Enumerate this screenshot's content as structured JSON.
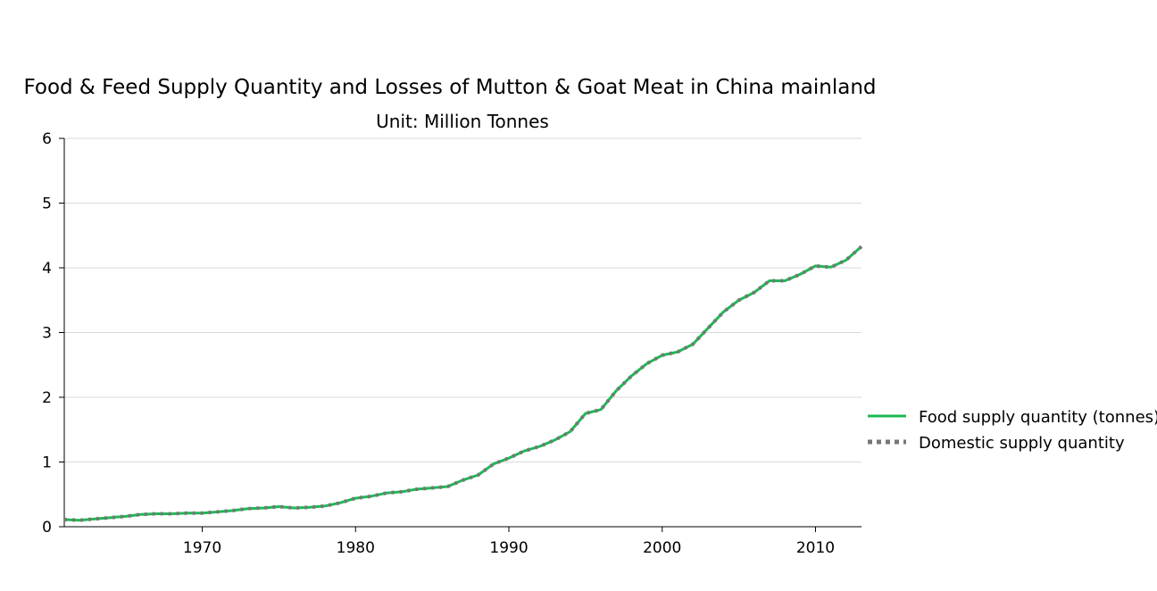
{
  "chart_data": {
    "type": "line",
    "title": "Food & Feed Supply Quantity and Losses of Mutton & Goat Meat in China mainland",
    "subtitle": "Unit: Million Tonnes",
    "xlabel": "",
    "ylabel": "",
    "xlim": [
      1961,
      2013
    ],
    "ylim": [
      0,
      6
    ],
    "x_ticks": [
      1970,
      1980,
      1990,
      2000,
      2010
    ],
    "y_ticks": [
      0,
      1,
      2,
      3,
      4,
      5,
      6
    ],
    "grid": "horizontal",
    "legend_position": "right",
    "x": [
      1961,
      1962,
      1963,
      1964,
      1965,
      1966,
      1967,
      1968,
      1969,
      1970,
      1971,
      1972,
      1973,
      1974,
      1975,
      1976,
      1977,
      1978,
      1979,
      1980,
      1981,
      1982,
      1983,
      1984,
      1985,
      1986,
      1987,
      1988,
      1989,
      1990,
      1991,
      1992,
      1993,
      1994,
      1995,
      1996,
      1997,
      1998,
      1999,
      2000,
      2001,
      2002,
      2003,
      2004,
      2005,
      2006,
      2007,
      2008,
      2009,
      2010,
      2011,
      2012,
      2013
    ],
    "series": [
      {
        "name": "Food supply quantity (tonnes)",
        "color": "#1db954",
        "style": "solid",
        "values": [
          0.11,
          0.1,
          0.12,
          0.14,
          0.16,
          0.19,
          0.2,
          0.2,
          0.21,
          0.21,
          0.23,
          0.25,
          0.28,
          0.29,
          0.31,
          0.29,
          0.3,
          0.32,
          0.37,
          0.44,
          0.47,
          0.52,
          0.54,
          0.58,
          0.6,
          0.62,
          0.72,
          0.8,
          0.97,
          1.06,
          1.17,
          1.24,
          1.34,
          1.47,
          1.75,
          1.81,
          2.1,
          2.33,
          2.52,
          2.65,
          2.7,
          2.82,
          3.07,
          3.32,
          3.5,
          3.62,
          3.8,
          3.8,
          3.9,
          4.03,
          4.01,
          4.12,
          4.33
        ]
      },
      {
        "name": "Domestic supply quantity",
        "color": "#777777",
        "style": "dotted",
        "values": [
          0.11,
          0.1,
          0.12,
          0.14,
          0.16,
          0.19,
          0.2,
          0.2,
          0.21,
          0.21,
          0.23,
          0.25,
          0.28,
          0.29,
          0.31,
          0.29,
          0.3,
          0.32,
          0.37,
          0.44,
          0.47,
          0.52,
          0.54,
          0.58,
          0.6,
          0.62,
          0.72,
          0.8,
          0.97,
          1.06,
          1.17,
          1.24,
          1.34,
          1.47,
          1.75,
          1.81,
          2.1,
          2.33,
          2.52,
          2.65,
          2.7,
          2.82,
          3.07,
          3.32,
          3.5,
          3.62,
          3.8,
          3.8,
          3.9,
          4.03,
          4.01,
          4.12,
          4.33
        ]
      }
    ]
  }
}
